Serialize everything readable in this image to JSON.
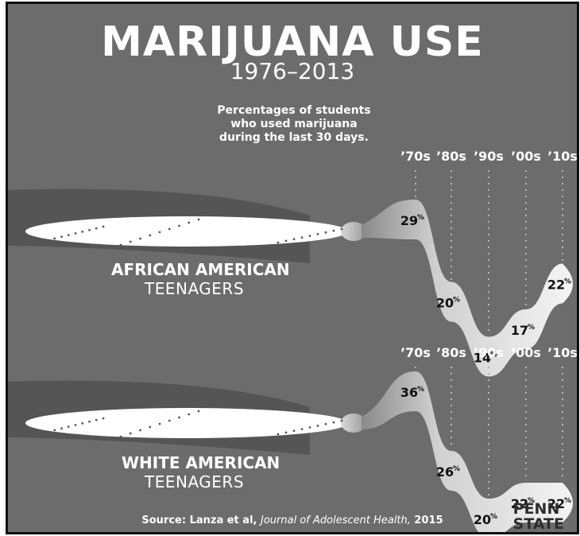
{
  "title": "MARIJUANA USE",
  "subtitle": "1976–2013",
  "note_lines": [
    "Percentages of students",
    "who used marijuana",
    "during the last 30 days."
  ],
  "source": {
    "prefix": "Source: Lanza et al, ",
    "journal": "Journal of Adolescent Health,",
    "year": " 2015"
  },
  "logo_lines": [
    "PENN",
    "STATE"
  ],
  "colors": {
    "background": "#6c6c6c",
    "joint_paper": "#ffffff",
    "smoke": "#e8e8e8",
    "shadow": "#555555"
  },
  "chart_data": [
    {
      "type": "line",
      "group_line1": "AFRICAN AMERICAN",
      "group_line2": "TEENAGERS",
      "categories": [
        "’70s",
        "’80s",
        "’90s",
        "’00s",
        "’10s"
      ],
      "values": [
        29,
        20,
        14,
        17,
        22
      ],
      "unit": "%"
    },
    {
      "type": "line",
      "group_line1": "WHITE AMERICAN",
      "group_line2": "TEENAGERS",
      "categories": [
        "’70s",
        "’80s",
        "’90s",
        "’00s",
        "’10s"
      ],
      "values": [
        36,
        26,
        20,
        22,
        22
      ],
      "unit": "%"
    }
  ]
}
